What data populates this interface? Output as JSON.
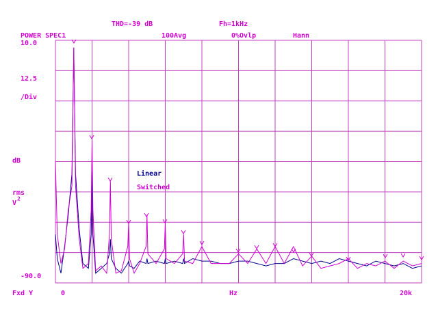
{
  "instrument": {
    "thd": "THD=-39 dB",
    "fh": "Fh=1kHz",
    "measurement": "POWER SPEC1",
    "averages": "100Avg",
    "overlap": "0%Ovlp",
    "window": "Hann",
    "y_mode": "Fxd Y"
  },
  "chart_data": {
    "type": "line",
    "y_scale": "12.5",
    "y_scale_unit": "/Div",
    "y_label_lines": [
      "dB",
      "rms"
    ],
    "y_label_base": "V",
    "y_label_exponent": "2",
    "x_label": "Hz",
    "xlim": [
      0,
      20000
    ],
    "ylim": [
      -90,
      10
    ],
    "xticks": [
      0,
      {
        "value": 20000,
        "label": "20k"
      }
    ],
    "yticks": [
      {
        "value": 10,
        "label": "10.0"
      },
      {
        "value": -90,
        "label": "-90.0"
      }
    ],
    "xgrid": [
      0,
      2000,
      4000,
      6000,
      8000,
      10000,
      12000,
      14000,
      16000,
      18000,
      20000
    ],
    "ygrid": [
      10,
      -2.5,
      -15,
      -27.5,
      -40,
      -52.5,
      -65,
      -77.5,
      -90
    ],
    "x": [
      0,
      100,
      300,
      500,
      700,
      900,
      1000,
      1100,
      1300,
      1500,
      1800,
      1950,
      2000,
      2050,
      2200,
      2500,
      2800,
      2950,
      3000,
      3050,
      3300,
      3600,
      3950,
      4000,
      4050,
      4300,
      4600,
      4950,
      5000,
      5050,
      5500,
      5950,
      6000,
      6050,
      6500,
      6950,
      7000,
      7050,
      7500,
      8000,
      8500,
      9000,
      9500,
      10000,
      10500,
      11000,
      11500,
      12000,
      12500,
      13000,
      13500,
      14000,
      14500,
      15000,
      15500,
      16000,
      16500,
      17000,
      17500,
      18000,
      18500,
      19000,
      19500,
      20000
    ],
    "series": [
      {
        "name": "Linear",
        "color": "#00008c",
        "values": [
          -70,
          -80,
          -86,
          -75,
          -62,
          -45,
          7,
          -45,
          -68,
          -82,
          -84,
          -70,
          -44,
          -70,
          -86,
          -84,
          -82,
          -78,
          -72,
          -80,
          -84,
          -86,
          -82,
          -81,
          -83,
          -84,
          -81,
          -82,
          -80,
          -82,
          -81,
          -82,
          -80,
          -82,
          -81,
          -82,
          -80,
          -82,
          -80,
          -81,
          -81,
          -82,
          -82,
          -81,
          -81,
          -82,
          -83,
          -82,
          -82,
          -80,
          -81,
          -82,
          -81,
          -82,
          -80,
          -81,
          -82,
          -83,
          -81,
          -82,
          -83,
          -82,
          -84,
          -83
        ]
      },
      {
        "name": "Switched",
        "color": "#d000d0",
        "values": [
          -40,
          -70,
          -82,
          -76,
          -60,
          -50,
          7,
          -50,
          -72,
          -84,
          -82,
          -60,
          -31,
          -60,
          -85,
          -83,
          -86,
          -70,
          -48,
          -72,
          -86,
          -85,
          -75,
          -65,
          -80,
          -86,
          -82,
          -75,
          -62,
          -78,
          -82,
          -76,
          -65,
          -80,
          -82,
          -78,
          -70,
          -81,
          -82,
          -75,
          -82,
          -82,
          -82,
          -78,
          -82,
          -76,
          -82,
          -75,
          -82,
          -75,
          -83,
          -79,
          -84,
          -83,
          -82,
          -80,
          -84,
          -82,
          -83,
          -81,
          -84,
          -81,
          -83,
          -82
        ]
      }
    ]
  }
}
